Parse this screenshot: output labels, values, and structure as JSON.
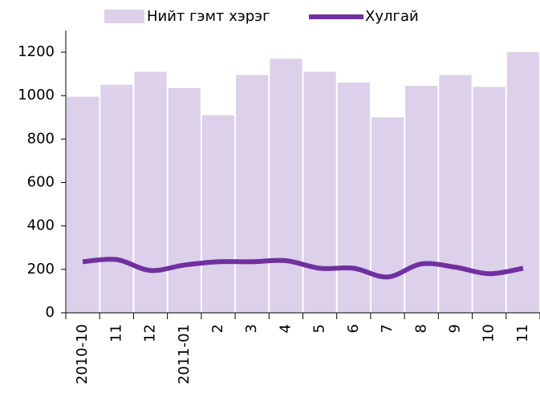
{
  "chart_data": {
    "type": "bar-line",
    "categories": [
      "2010-10",
      "11",
      "12",
      "2011-01",
      "2",
      "3",
      "4",
      "5",
      "6",
      "7",
      "8",
      "9",
      "10",
      "11"
    ],
    "series": [
      {
        "name": "Нийт гэмт хэрэг",
        "type": "bar",
        "color": "#dcd0ea",
        "values": [
          995,
          1050,
          1110,
          1035,
          910,
          1095,
          1170,
          1110,
          1060,
          900,
          1045,
          1095,
          1040,
          1200
        ]
      },
      {
        "name": "Хулгай",
        "type": "line",
        "color": "#7030a0",
        "values": [
          235,
          245,
          195,
          220,
          235,
          235,
          240,
          205,
          205,
          165,
          225,
          210,
          180,
          205
        ]
      }
    ],
    "ylim": [
      0,
      1300
    ],
    "yticks": [
      0,
      200,
      400,
      600,
      800,
      1000,
      1200
    ],
    "grid": false,
    "legend": "top"
  }
}
